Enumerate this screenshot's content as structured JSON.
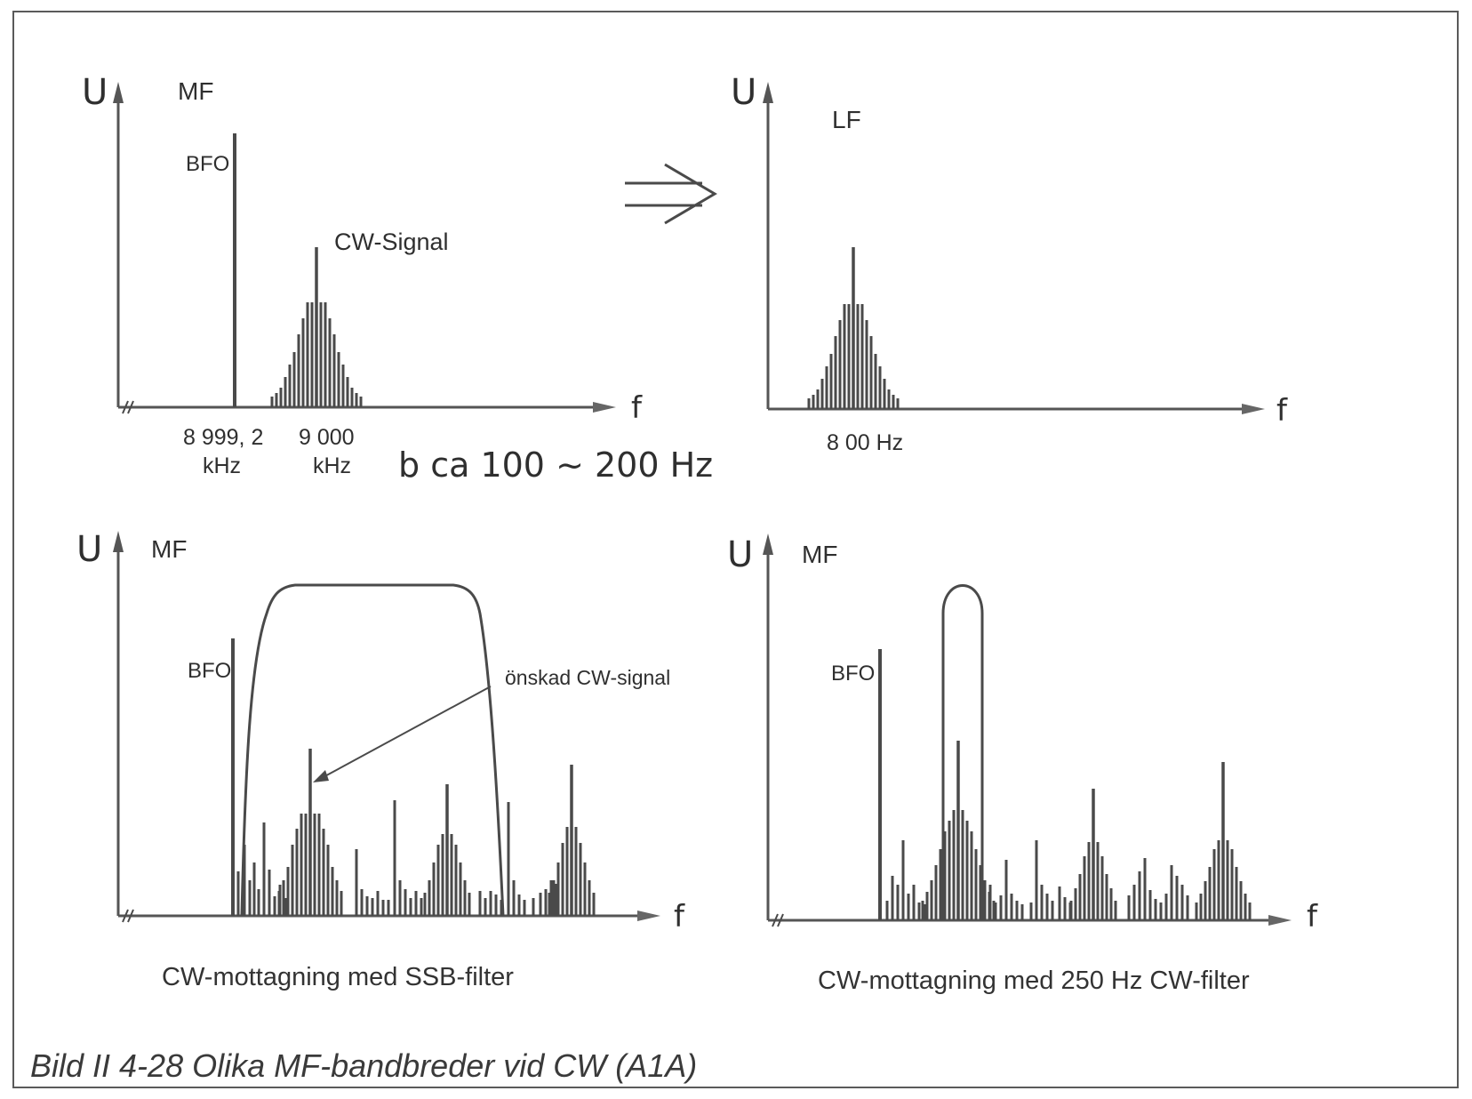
{
  "figure": {
    "title": "Bild II 4-28  Olika MF-bandbreder vid CW (A1A)",
    "arrow_symbol": "⇒"
  },
  "panels": {
    "top_left": {
      "u_label": "U",
      "band_label": "MF",
      "bfo_label": "BFO",
      "signal_label": "CW-Signal",
      "f_label": "f",
      "freq_bfo_value": "8 999, 2",
      "freq_bfo_unit": "kHz",
      "freq_sig_value": "9 000",
      "freq_sig_unit": "kHz",
      "bandwidth_note": "b ca  100 ~ 200 Hz"
    },
    "top_right": {
      "u_label": "U",
      "band_label": "LF",
      "f_label": "f",
      "freq_label": "8 00 Hz"
    },
    "bottom_left": {
      "u_label": "U",
      "band_label": "MF",
      "bfo_label": "BFO",
      "desired_label": "önskad CW-signal",
      "f_label": "f",
      "caption": "CW-mottagning med SSB-filter"
    },
    "bottom_right": {
      "u_label": "U",
      "band_label": "MF",
      "bfo_label": "BFO",
      "f_label": "f",
      "caption": "CW-mottagning med 250 Hz CW-filter"
    }
  },
  "colors": {
    "ink": "#4a4a4a",
    "frame": "#5a5a5a"
  }
}
